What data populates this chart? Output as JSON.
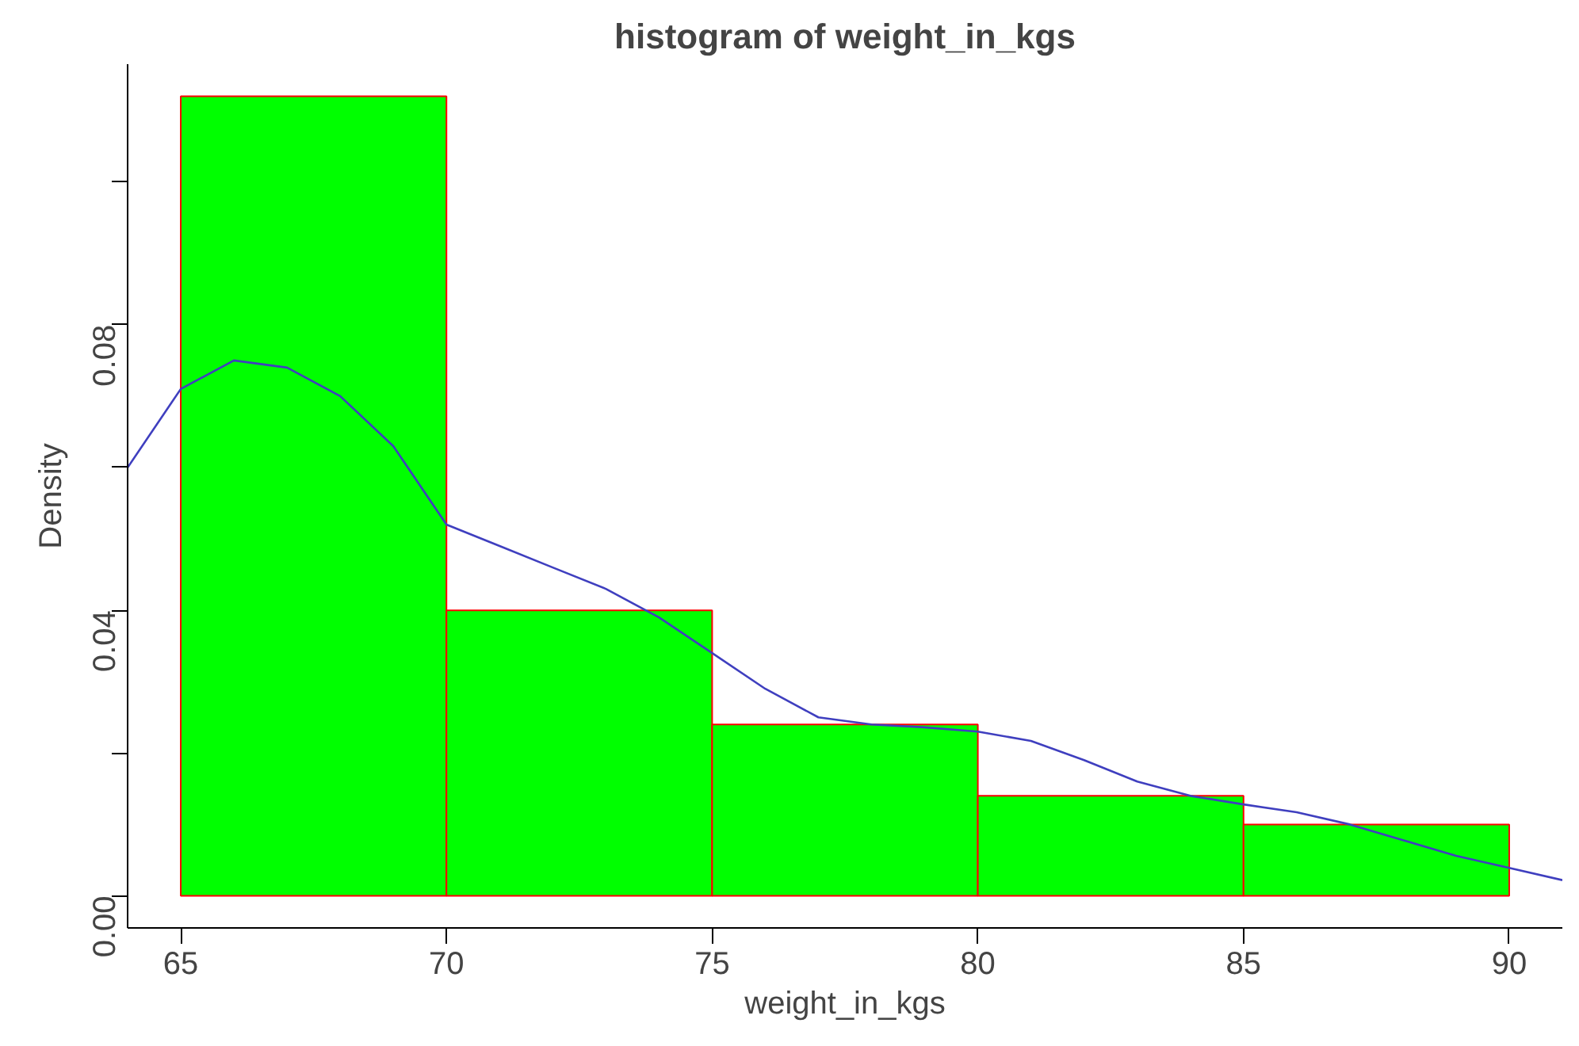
{
  "chart_data": {
    "type": "histogram",
    "title": "histogram of weight_in_kgs",
    "xlabel": "weight_in_kgs",
    "ylabel": "Density",
    "xlim": [
      64,
      91
    ],
    "ylim": [
      -0.0045,
      0.1165
    ],
    "xticks": [
      65,
      70,
      75,
      80,
      85,
      90
    ],
    "yticks": [
      {
        "value": 0,
        "label": "0.00"
      },
      {
        "value": 0.02,
        "label": null
      },
      {
        "value": 0.04,
        "label": "0.04"
      },
      {
        "value": 0.06,
        "label": null
      },
      {
        "value": 0.08,
        "label": "0.08"
      },
      {
        "value": 0.1,
        "label": null
      }
    ],
    "grid": false,
    "series": [
      {
        "color": "#00ff00",
        "bins": [
          65,
          70,
          75,
          80,
          85,
          90
        ],
        "values": [
          0.112,
          0.04,
          0.024,
          0.014,
          0.01
        ]
      },
      {
        "type": "line",
        "color": "#3f3fbf",
        "x": [
          64,
          65,
          66,
          67,
          68,
          69,
          70,
          71,
          72,
          73,
          74,
          75,
          76,
          77,
          78,
          79,
          80,
          81,
          82,
          83,
          84,
          85,
          86,
          87,
          88,
          89,
          90,
          91
        ],
        "values": [
          0.06,
          0.071,
          0.075,
          0.074,
          0.07,
          0.063,
          0.052,
          0.049,
          0.046,
          0.043,
          0.039,
          0.034,
          0.029,
          0.025,
          0.024,
          0.0236,
          0.023,
          0.0217,
          0.019,
          0.016,
          0.014,
          0.0128,
          0.0117,
          0.01,
          0.0078,
          0.0056,
          0.0039,
          0.0022
        ]
      }
    ]
  }
}
